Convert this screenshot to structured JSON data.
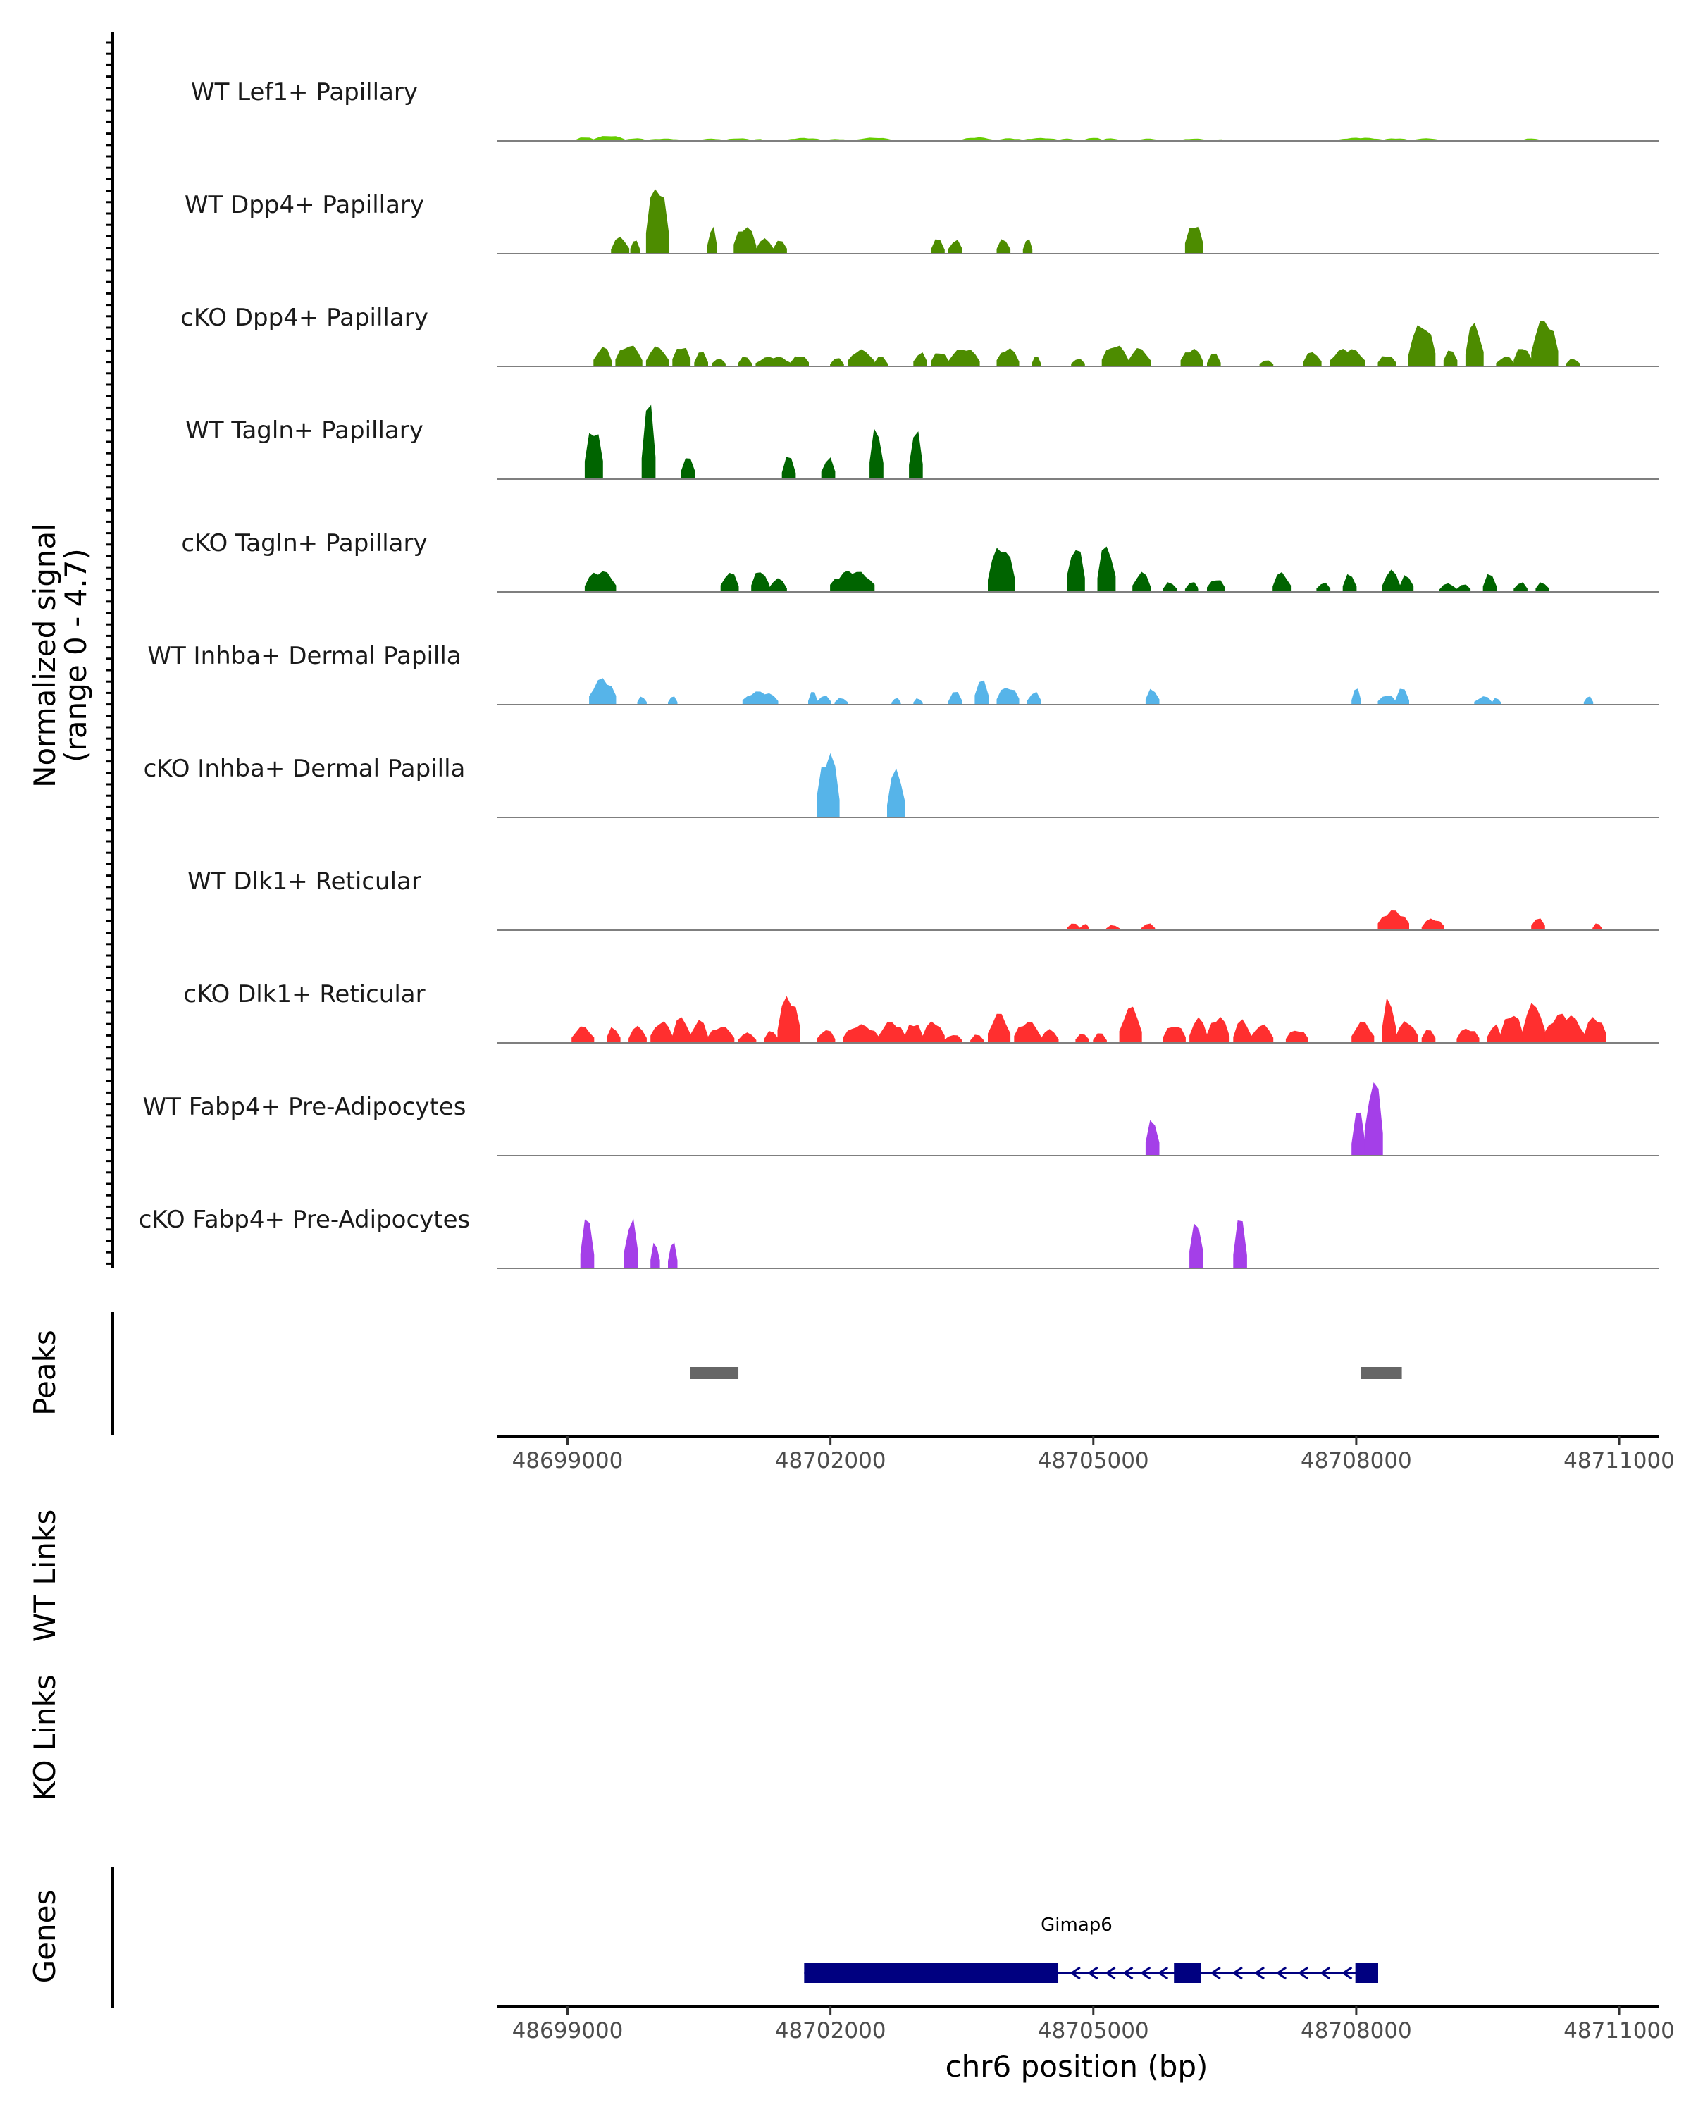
{
  "chart_data": {
    "type": "area",
    "title": "",
    "region": {
      "chrom": "chr6",
      "start": 48698200,
      "end": 48711450
    },
    "ylabel": "Normalized signal",
    "ylabel_range": "(range 0 - 4.7)",
    "ylim": [
      0,
      4.7
    ],
    "xlabel": "chr6 position (bp)",
    "xticks": [
      "48699000",
      "48702000",
      "48705000",
      "48708000",
      "48711000"
    ],
    "xtick_values": [
      48699000,
      48702000,
      48705000,
      48708000,
      48711000
    ],
    "tracks": [
      {
        "name": "WT Lef1+ Papillary",
        "color": "#66CC00",
        "peaks": [
          [
            48699100,
            48699300,
            0.22
          ],
          [
            48699300,
            48699650,
            0.3
          ],
          [
            48699650,
            48699900,
            0.14
          ],
          [
            48699900,
            48700300,
            0.12
          ],
          [
            48700500,
            48700780,
            0.12
          ],
          [
            48700800,
            48701100,
            0.14
          ],
          [
            48701100,
            48701250,
            0.1
          ],
          [
            48701500,
            48701900,
            0.16
          ],
          [
            48701950,
            48702200,
            0.1
          ],
          [
            48702300,
            48702700,
            0.18
          ],
          [
            48703500,
            48703850,
            0.2
          ],
          [
            48703900,
            48704200,
            0.14
          ],
          [
            48704200,
            48704600,
            0.16
          ],
          [
            48704600,
            48704800,
            0.12
          ],
          [
            48704900,
            48705100,
            0.18
          ],
          [
            48705100,
            48705300,
            0.14
          ],
          [
            48705500,
            48705750,
            0.12
          ],
          [
            48706000,
            48706300,
            0.12
          ],
          [
            48706400,
            48706500,
            0.08
          ],
          [
            48707800,
            48708300,
            0.18
          ],
          [
            48708300,
            48708600,
            0.14
          ],
          [
            48708650,
            48708950,
            0.14
          ],
          [
            48709900,
            48710100,
            0.14
          ]
        ]
      },
      {
        "name": "WT Dpp4+ Papillary",
        "color": "#4D8C00",
        "peaks": [
          [
            48699500,
            48699700,
            1.0
          ],
          [
            48699720,
            48699820,
            0.9
          ],
          [
            48699900,
            48700150,
            4.3
          ],
          [
            48700600,
            48700700,
            1.7
          ],
          [
            48700900,
            48701150,
            1.7
          ],
          [
            48701150,
            48701350,
            0.9
          ],
          [
            48701350,
            48701500,
            0.9
          ],
          [
            48703150,
            48703300,
            0.9
          ],
          [
            48703350,
            48703500,
            0.9
          ],
          [
            48703900,
            48704050,
            0.9
          ],
          [
            48704200,
            48704300,
            0.9
          ],
          [
            48706050,
            48706250,
            1.9
          ]
        ]
      },
      {
        "name": "cKO Dpp4+ Papillary",
        "color": "#4D8C00",
        "peaks": [
          [
            48699300,
            48699500,
            1.2
          ],
          [
            48699550,
            48699850,
            1.3
          ],
          [
            48699900,
            48700150,
            1.2
          ],
          [
            48700200,
            48700400,
            1.3
          ],
          [
            48700450,
            48700600,
            0.9
          ],
          [
            48700650,
            48700800,
            0.5
          ],
          [
            48700950,
            48701100,
            0.6
          ],
          [
            48701150,
            48701550,
            0.6
          ],
          [
            48701550,
            48701750,
            0.7
          ],
          [
            48702000,
            48702150,
            0.5
          ],
          [
            48702200,
            48702500,
            1.0
          ],
          [
            48702500,
            48702650,
            0.6
          ],
          [
            48702950,
            48703100,
            0.9
          ],
          [
            48703150,
            48703350,
            0.9
          ],
          [
            48703350,
            48703700,
            1.1
          ],
          [
            48703900,
            48704150,
            1.1
          ],
          [
            48704300,
            48704400,
            0.6
          ],
          [
            48704750,
            48704900,
            0.5
          ],
          [
            48705100,
            48705400,
            1.3
          ],
          [
            48705400,
            48705650,
            1.1
          ],
          [
            48706000,
            48706250,
            1.1
          ],
          [
            48706300,
            48706450,
            0.8
          ],
          [
            48706900,
            48707050,
            0.4
          ],
          [
            48707400,
            48707600,
            0.9
          ],
          [
            48707700,
            48708100,
            1.1
          ],
          [
            48708250,
            48708450,
            0.7
          ],
          [
            48708600,
            48708900,
            2.6
          ],
          [
            48709000,
            48709150,
            1.1
          ],
          [
            48709250,
            48709450,
            2.7
          ],
          [
            48709600,
            48709800,
            0.6
          ],
          [
            48709800,
            48710000,
            1.2
          ],
          [
            48710000,
            48710300,
            2.9
          ],
          [
            48710400,
            48710550,
            0.5
          ]
        ]
      },
      {
        "name": "WT Tagln+ Papillary",
        "color": "#006400",
        "peaks": [
          [
            48699200,
            48699400,
            3.3
          ],
          [
            48699850,
            48700000,
            4.7
          ],
          [
            48700300,
            48700450,
            1.5
          ],
          [
            48701450,
            48701600,
            1.4
          ],
          [
            48701900,
            48702050,
            1.4
          ],
          [
            48702450,
            48702600,
            3.2
          ],
          [
            48702900,
            48703050,
            3.0
          ]
        ]
      },
      {
        "name": "cKO Tagln+ Papillary",
        "color": "#006400",
        "peaks": [
          [
            48699200,
            48699550,
            1.3
          ],
          [
            48700750,
            48700950,
            1.2
          ],
          [
            48701100,
            48701300,
            1.3
          ],
          [
            48701300,
            48701500,
            0.8
          ],
          [
            48702000,
            48702500,
            1.3
          ],
          [
            48703800,
            48704100,
            2.8
          ],
          [
            48704700,
            48704900,
            2.8
          ],
          [
            48705050,
            48705250,
            2.9
          ],
          [
            48705450,
            48705650,
            1.2
          ],
          [
            48705800,
            48705950,
            0.6
          ],
          [
            48706050,
            48706200,
            0.6
          ],
          [
            48706300,
            48706500,
            0.8
          ],
          [
            48707050,
            48707250,
            1.2
          ],
          [
            48707550,
            48707700,
            0.6
          ],
          [
            48707850,
            48708000,
            1.1
          ],
          [
            48708300,
            48708500,
            1.3
          ],
          [
            48708500,
            48708650,
            1.1
          ],
          [
            48708950,
            48709150,
            0.5
          ],
          [
            48709150,
            48709300,
            0.5
          ],
          [
            48709450,
            48709600,
            1.1
          ],
          [
            48709800,
            48709950,
            0.6
          ],
          [
            48710050,
            48710200,
            0.6
          ]
        ]
      },
      {
        "name": "WT Inhba+ Dermal Papilla",
        "color": "#56B4E9",
        "peaks": [
          [
            48699250,
            48699550,
            1.6
          ],
          [
            48699800,
            48699900,
            0.5
          ],
          [
            48700150,
            48700250,
            0.5
          ],
          [
            48701000,
            48701400,
            0.8
          ],
          [
            48701750,
            48701850,
            0.8
          ],
          [
            48701850,
            48702000,
            0.6
          ],
          [
            48702050,
            48702200,
            0.4
          ],
          [
            48702700,
            48702800,
            0.4
          ],
          [
            48702950,
            48703050,
            0.4
          ],
          [
            48703350,
            48703500,
            0.8
          ],
          [
            48703650,
            48703800,
            1.7
          ],
          [
            48703900,
            48704150,
            1.1
          ],
          [
            48704250,
            48704400,
            0.8
          ],
          [
            48705600,
            48705750,
            1.0
          ],
          [
            48707950,
            48708050,
            1.0
          ],
          [
            48708250,
            48708450,
            0.6
          ],
          [
            48708450,
            48708600,
            1.0
          ],
          [
            48709350,
            48709550,
            0.5
          ],
          [
            48709550,
            48709650,
            0.4
          ],
          [
            48710600,
            48710700,
            0.5
          ]
        ]
      },
      {
        "name": "cKO Inhba+ Dermal Papilla",
        "color": "#56B4E9",
        "peaks": [
          [
            48701850,
            48702100,
            4.0
          ],
          [
            48702650,
            48702850,
            2.9
          ]
        ]
      },
      {
        "name": "WT Dlk1+ Reticular",
        "color": "#FF2F2F",
        "peaks": [
          [
            48704700,
            48704850,
            0.4
          ],
          [
            48704850,
            48704950,
            0.4
          ],
          [
            48705150,
            48705300,
            0.3
          ],
          [
            48705550,
            48705700,
            0.4
          ],
          [
            48708250,
            48708600,
            1.2
          ],
          [
            48708750,
            48709000,
            0.7
          ],
          [
            48710000,
            48710150,
            0.8
          ],
          [
            48710700,
            48710800,
            0.4
          ]
        ]
      },
      {
        "name": "cKO Dlk1+ Reticular",
        "color": "#FF2F2F",
        "peaks": [
          [
            48699050,
            48699300,
            1.0
          ],
          [
            48699450,
            48699600,
            1.0
          ],
          [
            48699700,
            48699900,
            1.0
          ],
          [
            48699950,
            48700200,
            1.3
          ],
          [
            48700200,
            48700400,
            1.6
          ],
          [
            48700400,
            48700600,
            1.4
          ],
          [
            48700600,
            48700900,
            1.0
          ],
          [
            48700950,
            48701150,
            0.6
          ],
          [
            48701250,
            48701400,
            0.8
          ],
          [
            48701400,
            48701650,
            2.9
          ],
          [
            48701850,
            48702050,
            0.8
          ],
          [
            48702150,
            48702550,
            1.1
          ],
          [
            48702550,
            48702850,
            1.3
          ],
          [
            48702850,
            48703050,
            1.3
          ],
          [
            48703050,
            48703300,
            1.3
          ],
          [
            48703300,
            48703500,
            0.5
          ],
          [
            48703600,
            48703750,
            0.5
          ],
          [
            48703800,
            48704050,
            1.8
          ],
          [
            48704100,
            48704400,
            1.3
          ],
          [
            48704400,
            48704600,
            0.8
          ],
          [
            48704800,
            48704950,
            0.6
          ],
          [
            48705000,
            48705150,
            0.6
          ],
          [
            48705300,
            48705550,
            2.2
          ],
          [
            48705800,
            48706050,
            1.1
          ],
          [
            48706100,
            48706300,
            1.5
          ],
          [
            48706300,
            48706550,
            1.6
          ],
          [
            48706600,
            48706800,
            1.4
          ],
          [
            48706800,
            48707050,
            1.1
          ],
          [
            48707200,
            48707450,
            0.8
          ],
          [
            48707950,
            48708200,
            1.3
          ],
          [
            48708300,
            48708450,
            2.9
          ],
          [
            48708450,
            48708700,
            1.3
          ],
          [
            48708750,
            48708900,
            0.9
          ],
          [
            48709150,
            48709400,
            0.9
          ],
          [
            48709500,
            48709650,
            1.2
          ],
          [
            48709650,
            48709900,
            1.8
          ],
          [
            48709900,
            48710150,
            2.4
          ],
          [
            48710150,
            48710600,
            1.8
          ],
          [
            48710600,
            48710850,
            1.6
          ]
        ]
      },
      {
        "name": "WT Fabp4+ Pre-Adipocytes",
        "color": "#A43FE8",
        "peaks": [
          [
            48705600,
            48705750,
            2.4
          ],
          [
            48707950,
            48708100,
            2.8
          ],
          [
            48708100,
            48708300,
            4.7
          ]
        ]
      },
      {
        "name": "cKO Fabp4+ Pre-Adipocytes",
        "color": "#A43FE8",
        "peaks": [
          [
            48699150,
            48699300,
            3.1
          ],
          [
            48699650,
            48699800,
            3.2
          ],
          [
            48699950,
            48700050,
            1.6
          ],
          [
            48700150,
            48700250,
            1.6
          ],
          [
            48706100,
            48706250,
            3.1
          ],
          [
            48706600,
            48706750,
            3.1
          ]
        ]
      }
    ],
    "peaks_track": {
      "label": "Peaks",
      "color": "#666666",
      "ranges": [
        [
          48700400,
          48700950
        ],
        [
          48708050,
          48708520
        ]
      ]
    },
    "links_tracks": [
      {
        "label": "WT Links"
      },
      {
        "label": "KO Links"
      }
    ],
    "genes_track": {
      "label": "Genes",
      "color": "#000080",
      "gene": "Gimap6",
      "strand": "-",
      "span": [
        48701700,
        48708250
      ],
      "exons": [
        [
          48701700,
          48704600
        ],
        [
          48705920,
          48706230
        ],
        [
          48707990,
          48708250
        ]
      ],
      "arrow_positions": [
        48704800,
        48705000,
        48705200,
        48705400,
        48705600,
        48705800,
        48706400,
        48706650,
        48706900,
        48707150,
        48707400,
        48707650,
        48707900
      ]
    }
  }
}
